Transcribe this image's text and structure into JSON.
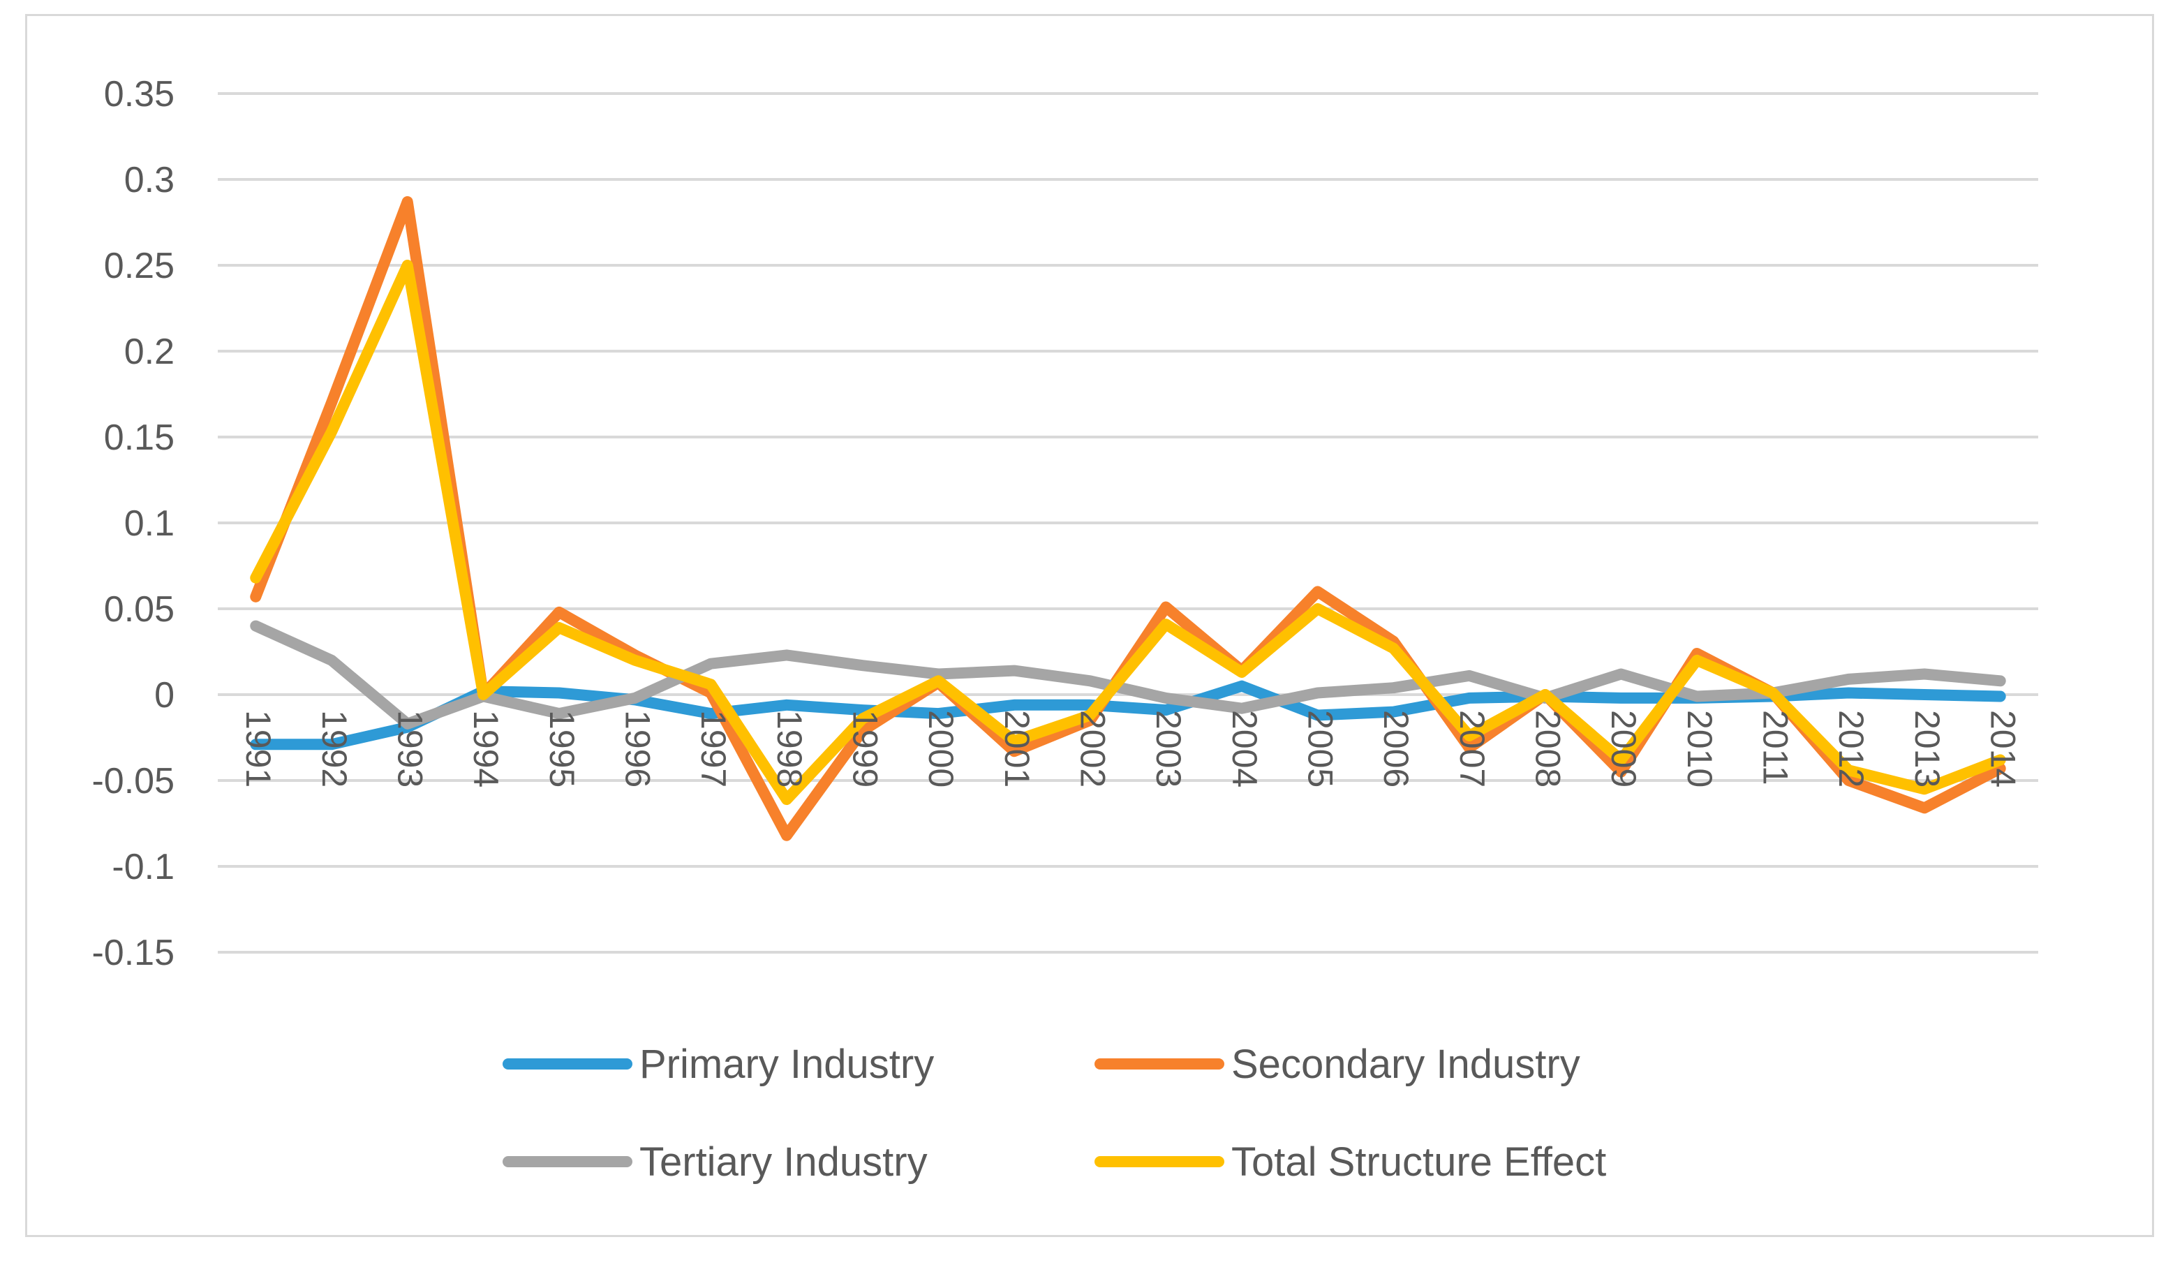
{
  "chart_data": {
    "type": "line",
    "title": "",
    "xlabel": "",
    "ylabel": "",
    "ylim": [
      -0.15,
      0.35
    ],
    "y_ticks": [
      "0.35",
      "0.3",
      "0.25",
      "0.2",
      "0.15",
      "0.1",
      "0.05",
      "0",
      "-0.05",
      "-0.1",
      "-0.15"
    ],
    "y_tick_values": [
      0.35,
      0.3,
      0.25,
      0.2,
      0.15,
      0.1,
      0.05,
      0,
      -0.05,
      -0.1,
      -0.15
    ],
    "grid": true,
    "legend_position": "bottom",
    "categories": [
      "1991",
      "1992",
      "1993",
      "1994",
      "1995",
      "1996",
      "1997",
      "1998",
      "1999",
      "2000",
      "2001",
      "2002",
      "2003",
      "2004",
      "2005",
      "2006",
      "2007",
      "2008",
      "2009",
      "2010",
      "2011",
      "2012",
      "2013",
      "2014"
    ],
    "series": [
      {
        "name": "Primary Industry",
        "color": "#2e9ad6",
        "values": [
          -0.029,
          -0.029,
          -0.019,
          0.002,
          0.001,
          -0.003,
          -0.011,
          -0.006,
          -0.009,
          -0.011,
          -0.006,
          -0.006,
          -0.009,
          0.005,
          -0.012,
          -0.01,
          -0.002,
          -0.001,
          -0.002,
          -0.002,
          -0.001,
          0.001,
          0.0,
          -0.001
        ]
      },
      {
        "name": "Secondary Industry",
        "color": "#f7812b",
        "values": [
          0.057,
          0.17,
          0.287,
          0.0,
          0.048,
          0.023,
          0.001,
          -0.082,
          -0.021,
          0.007,
          -0.033,
          -0.015,
          0.051,
          0.014,
          0.06,
          0.031,
          -0.031,
          0.0,
          -0.045,
          0.024,
          0.001,
          -0.05,
          -0.066,
          -0.043
        ]
      },
      {
        "name": "Tertiary Industry",
        "color": "#a5a5a5",
        "values": [
          0.04,
          0.02,
          -0.017,
          -0.001,
          -0.011,
          -0.002,
          0.018,
          0.023,
          0.017,
          0.012,
          0.014,
          0.008,
          -0.002,
          -0.008,
          0.001,
          0.004,
          0.011,
          -0.002,
          0.012,
          -0.001,
          0.001,
          0.009,
          0.012,
          0.008
        ]
      },
      {
        "name": "Total Structure Effect",
        "color": "#ffc000",
        "values": [
          0.068,
          0.153,
          0.25,
          0.0,
          0.039,
          0.02,
          0.006,
          -0.061,
          -0.014,
          0.008,
          -0.027,
          -0.012,
          0.041,
          0.013,
          0.05,
          0.027,
          -0.024,
          0.0,
          -0.038,
          0.02,
          0.001,
          -0.044,
          -0.055,
          -0.038
        ]
      }
    ]
  }
}
